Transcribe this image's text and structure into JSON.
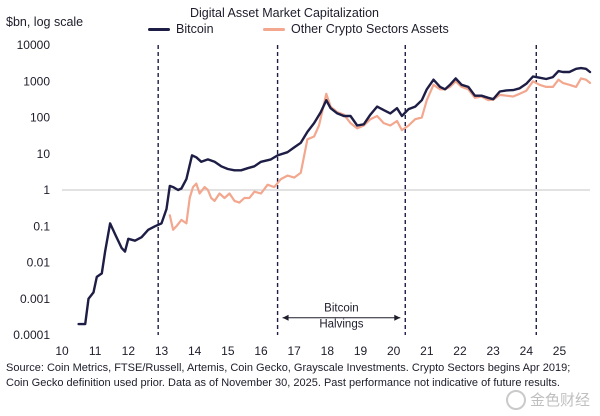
{
  "chart_data": {
    "type": "line",
    "title": "Digital Asset Market Capitalization",
    "ylabel": "$bn, log scale",
    "xlabel": "",
    "y_scale": "log",
    "ylim": [
      0.0001,
      10000
    ],
    "xlim": [
      2010,
      2025.92
    ],
    "grid": false,
    "reference_line_y": 1,
    "legend": {
      "placement": "top-center"
    },
    "y_ticks": [
      {
        "value": 10000,
        "label": "10000"
      },
      {
        "value": 1000,
        "label": "1000"
      },
      {
        "value": 100,
        "label": "100"
      },
      {
        "value": 10,
        "label": "10"
      },
      {
        "value": 1,
        "label": "1"
      },
      {
        "value": 0.1,
        "label": "0.1"
      },
      {
        "value": 0.01,
        "label": "0.01"
      },
      {
        "value": 0.001,
        "label": "0.001"
      },
      {
        "value": 0.0001,
        "label": "0.0001"
      }
    ],
    "x_ticks": [
      {
        "value": 2010,
        "label": "10"
      },
      {
        "value": 2011,
        "label": "11"
      },
      {
        "value": 2012,
        "label": "12"
      },
      {
        "value": 2013,
        "label": "13"
      },
      {
        "value": 2014,
        "label": "14"
      },
      {
        "value": 2015,
        "label": "15"
      },
      {
        "value": 2016,
        "label": "16"
      },
      {
        "value": 2017,
        "label": "17"
      },
      {
        "value": 2018,
        "label": "18"
      },
      {
        "value": 2019,
        "label": "19"
      },
      {
        "value": 2020,
        "label": "20"
      },
      {
        "value": 2021,
        "label": "21"
      },
      {
        "value": 2022,
        "label": "22"
      },
      {
        "value": 2023,
        "label": "23"
      },
      {
        "value": 2024,
        "label": "24"
      },
      {
        "value": 2025,
        "label": "25"
      }
    ],
    "halving_lines": [
      2012.9,
      2016.5,
      2020.35,
      2024.3
    ],
    "annotation": {
      "lines": [
        "Bitcoin",
        "Halvings"
      ],
      "from": 2016.5,
      "to": 2020.35,
      "y": 0.0003
    },
    "series": [
      {
        "name": "Bitcoin",
        "color": "#1d1d45",
        "points": [
          [
            2010.5,
            0.0002
          ],
          [
            2010.7,
            0.0002
          ],
          [
            2010.8,
            0.001
          ],
          [
            2010.95,
            0.0015
          ],
          [
            2011.05,
            0.004
          ],
          [
            2011.2,
            0.005
          ],
          [
            2011.3,
            0.02
          ],
          [
            2011.45,
            0.12
          ],
          [
            2011.6,
            0.06
          ],
          [
            2011.8,
            0.025
          ],
          [
            2011.9,
            0.02
          ],
          [
            2012.0,
            0.045
          ],
          [
            2012.2,
            0.04
          ],
          [
            2012.4,
            0.05
          ],
          [
            2012.6,
            0.08
          ],
          [
            2012.8,
            0.1
          ],
          [
            2013.0,
            0.12
          ],
          [
            2013.15,
            0.3
          ],
          [
            2013.25,
            1.3
          ],
          [
            2013.35,
            1.2
          ],
          [
            2013.5,
            1.0
          ],
          [
            2013.6,
            1.1
          ],
          [
            2013.75,
            2.0
          ],
          [
            2013.92,
            9.0
          ],
          [
            2014.05,
            8.0
          ],
          [
            2014.2,
            6.0
          ],
          [
            2014.4,
            7.0
          ],
          [
            2014.6,
            6.0
          ],
          [
            2014.8,
            4.5
          ],
          [
            2015.0,
            3.8
          ],
          [
            2015.2,
            3.5
          ],
          [
            2015.4,
            3.5
          ],
          [
            2015.6,
            4.0
          ],
          [
            2015.8,
            4.5
          ],
          [
            2016.0,
            6.0
          ],
          [
            2016.3,
            7.0
          ],
          [
            2016.5,
            9.0
          ],
          [
            2016.8,
            11
          ],
          [
            2017.0,
            15
          ],
          [
            2017.2,
            20
          ],
          [
            2017.4,
            40
          ],
          [
            2017.6,
            70
          ],
          [
            2017.8,
            140
          ],
          [
            2017.97,
            300
          ],
          [
            2018.1,
            180
          ],
          [
            2018.3,
            130
          ],
          [
            2018.5,
            110
          ],
          [
            2018.7,
            110
          ],
          [
            2018.9,
            60
          ],
          [
            2019.1,
            65
          ],
          [
            2019.3,
            120
          ],
          [
            2019.5,
            200
          ],
          [
            2019.7,
            160
          ],
          [
            2019.9,
            130
          ],
          [
            2020.1,
            180
          ],
          [
            2020.25,
            110
          ],
          [
            2020.45,
            170
          ],
          [
            2020.65,
            200
          ],
          [
            2020.85,
            300
          ],
          [
            2021.0,
            600
          ],
          [
            2021.2,
            1100
          ],
          [
            2021.4,
            700
          ],
          [
            2021.55,
            600
          ],
          [
            2021.7,
            800
          ],
          [
            2021.87,
            1200
          ],
          [
            2022.05,
            800
          ],
          [
            2022.25,
            700
          ],
          [
            2022.45,
            400
          ],
          [
            2022.65,
            400
          ],
          [
            2022.85,
            350
          ],
          [
            2023.0,
            320
          ],
          [
            2023.2,
            520
          ],
          [
            2023.4,
            560
          ],
          [
            2023.6,
            570
          ],
          [
            2023.8,
            640
          ],
          [
            2024.0,
            850
          ],
          [
            2024.2,
            1350
          ],
          [
            2024.4,
            1250
          ],
          [
            2024.6,
            1150
          ],
          [
            2024.8,
            1300
          ],
          [
            2024.97,
            1900
          ],
          [
            2025.1,
            1800
          ],
          [
            2025.3,
            1800
          ],
          [
            2025.5,
            2200
          ],
          [
            2025.65,
            2300
          ],
          [
            2025.8,
            2200
          ],
          [
            2025.92,
            1800
          ]
        ]
      },
      {
        "name": "Other Crypto Sectors Assets",
        "color": "#f2a78e",
        "points": [
          [
            2013.25,
            0.2
          ],
          [
            2013.35,
            0.08
          ],
          [
            2013.45,
            0.1
          ],
          [
            2013.6,
            0.15
          ],
          [
            2013.75,
            0.12
          ],
          [
            2013.85,
            0.6
          ],
          [
            2013.95,
            1.2
          ],
          [
            2014.05,
            1.5
          ],
          [
            2014.15,
            0.8
          ],
          [
            2014.3,
            1.2
          ],
          [
            2014.4,
            1.0
          ],
          [
            2014.5,
            0.6
          ],
          [
            2014.6,
            0.5
          ],
          [
            2014.75,
            0.8
          ],
          [
            2014.9,
            0.6
          ],
          [
            2015.05,
            0.8
          ],
          [
            2015.2,
            0.5
          ],
          [
            2015.35,
            0.45
          ],
          [
            2015.5,
            0.6
          ],
          [
            2015.65,
            0.6
          ],
          [
            2015.8,
            0.9
          ],
          [
            2016.0,
            0.8
          ],
          [
            2016.2,
            1.4
          ],
          [
            2016.4,
            1.2
          ],
          [
            2016.6,
            2.0
          ],
          [
            2016.8,
            2.5
          ],
          [
            2017.0,
            2.2
          ],
          [
            2017.2,
            3.0
          ],
          [
            2017.4,
            25
          ],
          [
            2017.6,
            30
          ],
          [
            2017.75,
            60
          ],
          [
            2017.97,
            450
          ],
          [
            2018.1,
            200
          ],
          [
            2018.3,
            140
          ],
          [
            2018.5,
            120
          ],
          [
            2018.7,
            70
          ],
          [
            2018.9,
            50
          ],
          [
            2019.1,
            60
          ],
          [
            2019.3,
            90
          ],
          [
            2019.5,
            110
          ],
          [
            2019.7,
            70
          ],
          [
            2019.9,
            60
          ],
          [
            2020.1,
            80
          ],
          [
            2020.25,
            45
          ],
          [
            2020.45,
            60
          ],
          [
            2020.65,
            90
          ],
          [
            2020.85,
            100
          ],
          [
            2021.0,
            300
          ],
          [
            2021.2,
            800
          ],
          [
            2021.4,
            600
          ],
          [
            2021.55,
            600
          ],
          [
            2021.7,
            700
          ],
          [
            2021.87,
            1000
          ],
          [
            2022.05,
            700
          ],
          [
            2022.25,
            600
          ],
          [
            2022.45,
            350
          ],
          [
            2022.65,
            380
          ],
          [
            2022.85,
            300
          ],
          [
            2023.0,
            310
          ],
          [
            2023.2,
            420
          ],
          [
            2023.4,
            400
          ],
          [
            2023.6,
            380
          ],
          [
            2023.8,
            450
          ],
          [
            2024.0,
            550
          ],
          [
            2024.2,
            1000
          ],
          [
            2024.4,
            800
          ],
          [
            2024.6,
            700
          ],
          [
            2024.8,
            700
          ],
          [
            2024.97,
            1100
          ],
          [
            2025.1,
            900
          ],
          [
            2025.3,
            800
          ],
          [
            2025.5,
            700
          ],
          [
            2025.65,
            1200
          ],
          [
            2025.8,
            1100
          ],
          [
            2025.92,
            900
          ]
        ]
      }
    ]
  },
  "source_text": "Source: Coin Metrics, FTSE/Russell, Artemis, Coin Gecko, Grayscale Investments. Crypto Sectors begins Apr 2019; Coin Gecko definition used prior. Data as of November 30, 2025. Past performance not indicative of future results.",
  "watermark": "金色财经"
}
